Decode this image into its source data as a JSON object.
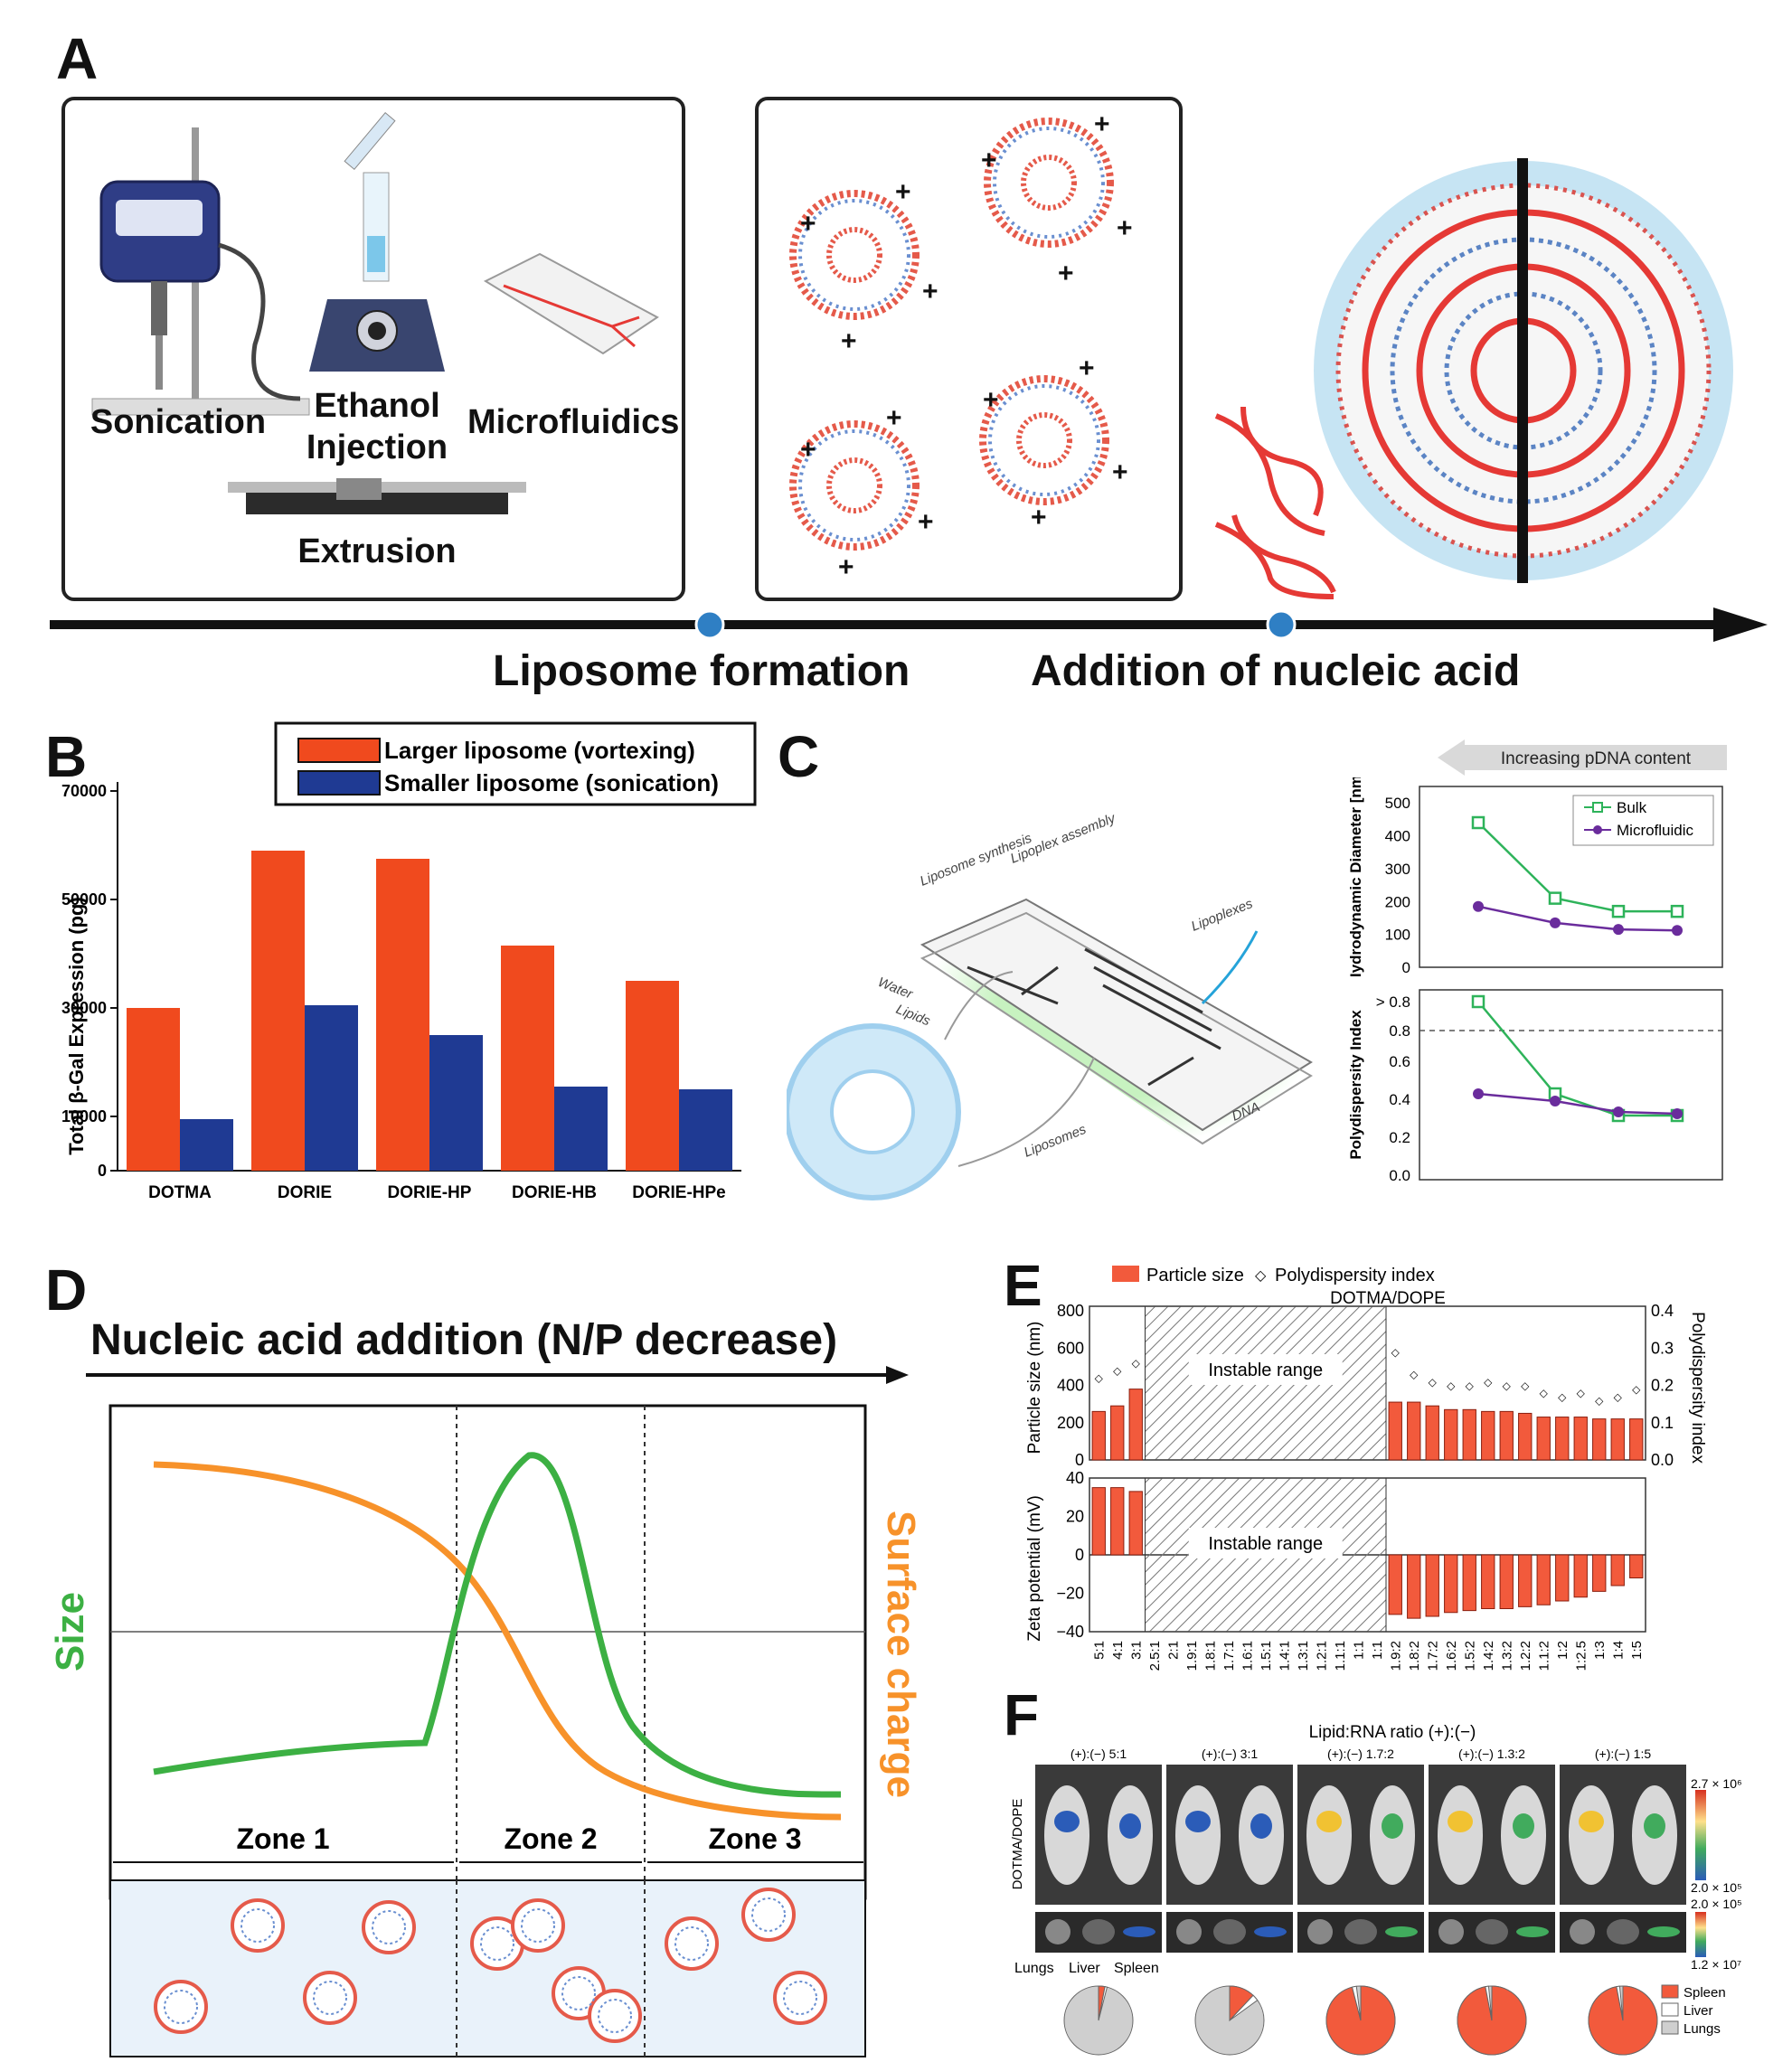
{
  "panels": {
    "A": {
      "letter": "A",
      "methods": [
        "Sonication",
        "Ethanol Injection",
        "Microfluidics",
        "Extrusion"
      ],
      "timeline": [
        "Liposome formation",
        "Addition of nucleic acid"
      ]
    },
    "B": {
      "letter": "B",
      "chart_data": {
        "type": "bar",
        "ylabel": "Total β-Gal Expression (pg)",
        "yticks": [
          0,
          10000,
          30000,
          50000,
          70000
        ],
        "ylim": [
          0,
          70000
        ],
        "categories": [
          "DOTMA",
          "DORIE",
          "DORIE-HP",
          "DORIE-HB",
          "DORIE-HPe"
        ],
        "series": [
          {
            "name": "Larger liposome (vortexing)",
            "color": "#f04a1e",
            "values": [
              30000,
              59000,
              57500,
              41500,
              35000
            ]
          },
          {
            "name": "Smaller liposome (sonication)",
            "color": "#1f3a93",
            "values": [
              9500,
              30500,
              25000,
              15500,
              15000
            ]
          }
        ],
        "legend": "top"
      }
    },
    "C": {
      "letter": "C",
      "arrow_label": "Increasing pDNA content",
      "chip_labels": [
        "Liposome synthesis",
        "Lipoplex assembly",
        "Lipoplexes",
        "Water",
        "Lipids",
        "Liposomes",
        "DNA"
      ],
      "chart_data": [
        {
          "type": "line",
          "ylabel": "Hydrodynamic Diameter [nm]",
          "yticks": [
            0,
            100,
            200,
            300,
            400,
            500
          ],
          "ylim": [
            0,
            550
          ],
          "series": [
            {
              "name": "Bulk",
              "color": "#2eb35a",
              "values": [
                440,
                210,
                170,
                170
              ]
            },
            {
              "name": "Microfluidic",
              "color": "#6a2c9c",
              "values": [
                185,
                135,
                115,
                112
              ]
            }
          ],
          "legend": "top-right"
        },
        {
          "type": "line",
          "ylabel": "Polydispersity Index",
          "yticks": [
            "0.0",
            "0.2",
            "0.4",
            "0.6",
            "0.8",
            "> 0.8"
          ],
          "series": [
            {
              "name": "Bulk",
              "color": "#2eb35a",
              "values": [
                0.93,
                0.45,
                0.33,
                0.33
              ]
            },
            {
              "name": "Microfluidic",
              "color": "#6a2c9c",
              "values": [
                0.45,
                0.41,
                0.35,
                0.34
              ]
            }
          ]
        }
      ]
    },
    "D": {
      "letter": "D",
      "title": "Nucleic acid addition (N/P decrease)",
      "y_left": "Size",
      "y_right": "Surface charge",
      "zones": [
        "Zone 1",
        "Zone 2",
        "Zone 3"
      ],
      "chart_data": {
        "type": "line",
        "series": [
          {
            "name": "Size",
            "color": "#3cb043"
          },
          {
            "name": "Surface charge",
            "color": "#f7922a"
          }
        ]
      }
    },
    "E": {
      "letter": "E",
      "legend": [
        "Particle size",
        "Polydispersity index"
      ],
      "subtitle": "DOTMA/DOPE",
      "instable": "Instable range",
      "ylabel_top": "Particle size (nm)",
      "ylabel_right": "Polydispersity index",
      "ylabel_bottom": "Zeta potential (mV)",
      "xlabel": "Lipid:RNA ratio (+):(−)",
      "top_yticks": [
        "0",
        "200",
        "400",
        "600",
        "800"
      ],
      "right_yticks": [
        "0.0",
        "0.1",
        "0.2",
        "0.3",
        "0.4"
      ],
      "bottom_yticks": [
        "40",
        "20",
        "0",
        "−20",
        "−40"
      ],
      "x_ticks": [
        "5:1",
        "4:1",
        "3:1",
        "2.5:1",
        "2:1",
        "1.9:1",
        "1.8:1",
        "1.7:1",
        "1.6:1",
        "1.5:1",
        "1.4:1",
        "1.3:1",
        "1.2:1",
        "1.1:1",
        "1:1",
        "1:1",
        "1.9:2",
        "1.8:2",
        "1.7:2",
        "1.6:2",
        "1.5:2",
        "1.4:2",
        "1.3:2",
        "1.2:2",
        "1.1:2",
        "1:2",
        "1:2.5",
        "1:3",
        "1:4",
        "1:5"
      ],
      "chart_data": {
        "type": "bar",
        "stable_left": {
          "sizes": [
            260,
            290,
            380
          ],
          "pdi": [
            0.19,
            0.21,
            0.23
          ],
          "zeta": [
            35,
            35,
            33
          ]
        },
        "stable_right": {
          "sizes": [
            310,
            310,
            290,
            270,
            270,
            260,
            260,
            250,
            230,
            230,
            230,
            220,
            220,
            220
          ],
          "pdi": [
            0.26,
            0.2,
            0.18,
            0.17,
            0.17,
            0.18,
            0.17,
            0.17,
            0.15,
            0.14,
            0.15,
            0.13,
            0.14,
            0.16
          ],
          "zeta": [
            -31,
            -33,
            -32,
            -30,
            -29,
            -28,
            -28,
            -27,
            -26,
            -24,
            -22,
            -19,
            -16,
            -12
          ]
        }
      }
    },
    "F": {
      "letter": "F",
      "ratios": [
        "(+):(−) 5:1",
        "(+):(−) 3:1",
        "(+):(−) 1.7:2",
        "(+):(−) 1.3:2",
        "(+):(−) 1:5"
      ],
      "side_label": "DOTMA/DOPE",
      "scale_top": [
        "2.7 × 10⁶",
        "2.0 × 10⁵"
      ],
      "scale_bottom": [
        "2.0 × 10⁵",
        "1.2 × 10⁷"
      ],
      "organs": [
        "Lungs",
        "Liver",
        "Spleen"
      ],
      "pie_legend": [
        {
          "name": "Spleen",
          "color": "#f25a3c"
        },
        {
          "name": "Liver",
          "color": "#ffffff"
        },
        {
          "name": "Lungs",
          "color": "#cfcfcf"
        }
      ],
      "pies": [
        {
          "spleen": 0.03,
          "liver": 0.01
        },
        {
          "spleen": 0.12,
          "liver": 0.03
        },
        {
          "spleen": 0.96,
          "liver": 0.02
        },
        {
          "spleen": 0.97,
          "liver": 0.015
        },
        {
          "spleen": 0.97,
          "liver": 0.015
        }
      ]
    }
  }
}
